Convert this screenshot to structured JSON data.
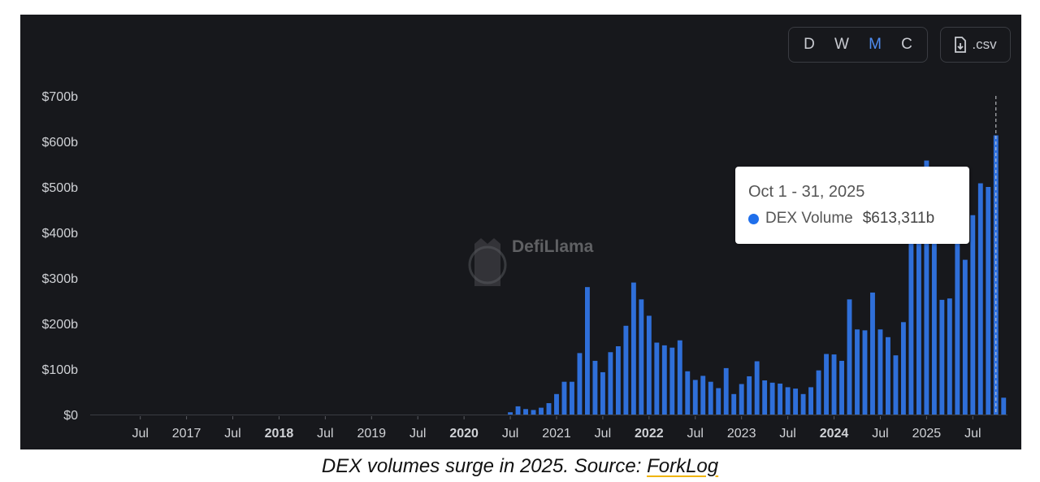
{
  "controls": {
    "granularity": [
      {
        "label": "D",
        "active": false
      },
      {
        "label": "W",
        "active": false
      },
      {
        "label": "M",
        "active": true
      },
      {
        "label": "C",
        "active": false
      }
    ],
    "csv_label": ".csv",
    "csv_icon": "file-download-icon"
  },
  "watermark": {
    "text": "DefiLlama",
    "icon": "llama-logo-icon"
  },
  "tooltip": {
    "date": "Oct 1 - 31, 2025",
    "series": "DEX Volume",
    "value": "$613,311b",
    "dot_color": "#1f6feb"
  },
  "caption": {
    "text": "DEX volumes surge in 2025. Source: ",
    "source": "ForkLog"
  },
  "colors": {
    "bar": "#2f6fd9",
    "background": "#17181c",
    "axis_text": "#d0d2d6"
  },
  "chart_data": {
    "type": "bar",
    "title": "",
    "xlabel": "",
    "ylabel": "",
    "ylim": [
      0,
      700
    ],
    "y_unit": "billion USD",
    "y_ticks": [
      "$0",
      "$100b",
      "$200b",
      "$300b",
      "$400b",
      "$500b",
      "$600b",
      "$700b"
    ],
    "x_ticks": [
      {
        "label": "Jul",
        "bold": false,
        "date": "2016-07"
      },
      {
        "label": "2017",
        "bold": false,
        "date": "2017-01"
      },
      {
        "label": "Jul",
        "bold": false,
        "date": "2017-07"
      },
      {
        "label": "2018",
        "bold": true,
        "date": "2018-01"
      },
      {
        "label": "Jul",
        "bold": false,
        "date": "2018-07"
      },
      {
        "label": "2019",
        "bold": false,
        "date": "2019-01"
      },
      {
        "label": "Jul",
        "bold": false,
        "date": "2019-07"
      },
      {
        "label": "2020",
        "bold": true,
        "date": "2020-01"
      },
      {
        "label": "Jul",
        "bold": false,
        "date": "2020-07"
      },
      {
        "label": "2021",
        "bold": false,
        "date": "2021-01"
      },
      {
        "label": "Jul",
        "bold": false,
        "date": "2021-07"
      },
      {
        "label": "2022",
        "bold": true,
        "date": "2022-01"
      },
      {
        "label": "Jul",
        "bold": false,
        "date": "2022-07"
      },
      {
        "label": "2023",
        "bold": false,
        "date": "2023-01"
      },
      {
        "label": "Jul",
        "bold": false,
        "date": "2023-07"
      },
      {
        "label": "2024",
        "bold": true,
        "date": "2024-01"
      },
      {
        "label": "Jul",
        "bold": false,
        "date": "2024-07"
      },
      {
        "label": "2025",
        "bold": false,
        "date": "2025-01"
      },
      {
        "label": "Jul",
        "bold": false,
        "date": "2025-07"
      }
    ],
    "series": [
      {
        "name": "DEX Volume",
        "x_start": "2016-01",
        "x_end": "2025-11",
        "highlight": "2025-10",
        "points": [
          [
            "2020-07",
            5
          ],
          [
            "2020-08",
            18
          ],
          [
            "2020-09",
            12
          ],
          [
            "2020-10",
            10
          ],
          [
            "2020-11",
            15
          ],
          [
            "2020-12",
            25
          ],
          [
            "2021-01",
            45
          ],
          [
            "2021-02",
            72
          ],
          [
            "2021-03",
            72
          ],
          [
            "2021-04",
            135
          ],
          [
            "2021-05",
            280
          ],
          [
            "2021-06",
            118
          ],
          [
            "2021-07",
            93
          ],
          [
            "2021-08",
            137
          ],
          [
            "2021-09",
            150
          ],
          [
            "2021-10",
            195
          ],
          [
            "2021-11",
            290
          ],
          [
            "2021-12",
            253
          ],
          [
            "2022-01",
            217
          ],
          [
            "2022-02",
            158
          ],
          [
            "2022-03",
            152
          ],
          [
            "2022-04",
            147
          ],
          [
            "2022-05",
            163
          ],
          [
            "2022-06",
            95
          ],
          [
            "2022-07",
            76
          ],
          [
            "2022-08",
            85
          ],
          [
            "2022-09",
            72
          ],
          [
            "2022-10",
            58
          ],
          [
            "2022-11",
            102
          ],
          [
            "2022-12",
            45
          ],
          [
            "2023-01",
            67
          ],
          [
            "2023-02",
            84
          ],
          [
            "2023-03",
            117
          ],
          [
            "2023-04",
            75
          ],
          [
            "2023-05",
            70
          ],
          [
            "2023-06",
            68
          ],
          [
            "2023-07",
            60
          ],
          [
            "2023-08",
            57
          ],
          [
            "2023-09",
            45
          ],
          [
            "2023-10",
            60
          ],
          [
            "2023-11",
            97
          ],
          [
            "2023-12",
            133
          ],
          [
            "2024-01",
            132
          ],
          [
            "2024-02",
            118
          ],
          [
            "2024-03",
            253
          ],
          [
            "2024-04",
            187
          ],
          [
            "2024-05",
            185
          ],
          [
            "2024-06",
            268
          ],
          [
            "2024-07",
            187
          ],
          [
            "2024-08",
            170
          ],
          [
            "2024-09",
            130
          ],
          [
            "2024-10",
            203
          ],
          [
            "2024-11",
            420
          ],
          [
            "2024-12",
            430
          ],
          [
            "2025-01",
            558
          ],
          [
            "2025-02",
            380
          ],
          [
            "2025-03",
            252
          ],
          [
            "2025-04",
            255
          ],
          [
            "2025-05",
            420
          ],
          [
            "2025-06",
            340
          ],
          [
            "2025-07",
            438
          ],
          [
            "2025-08",
            508
          ],
          [
            "2025-09",
            500
          ],
          [
            "2025-10",
            613.311
          ],
          [
            "2025-11",
            37
          ]
        ]
      }
    ]
  }
}
